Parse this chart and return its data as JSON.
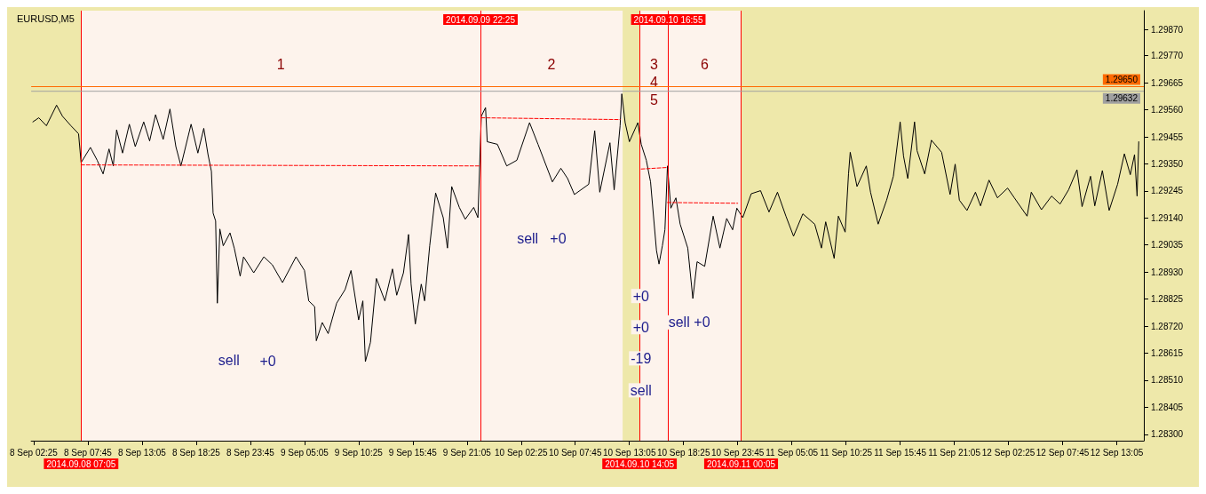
{
  "chart_data": {
    "type": "line",
    "title": "EURUSD,M5",
    "marker": "none",
    "grid": false,
    "xlim": [
      "2014-09-08T02:10",
      "2014-09-12T15:45"
    ],
    "ylim": [
      1.28275,
      1.29945
    ],
    "xticks": [
      {
        "value": "2014-09-08T02:25",
        "label": "8 Sep 02:25"
      },
      {
        "value": "2014-09-08T07:45",
        "label": "8 Sep 07:45"
      },
      {
        "value": "2014-09-08T13:05",
        "label": "8 Sep 13:05"
      },
      {
        "value": "2014-09-08T18:25",
        "label": "8 Sep 18:25"
      },
      {
        "value": "2014-09-08T23:45",
        "label": "8 Sep 23:45"
      },
      {
        "value": "2014-09-09T05:05",
        "label": "9 Sep 05:05"
      },
      {
        "value": "2014-09-09T10:25",
        "label": "9 Sep 10:25"
      },
      {
        "value": "2014-09-09T15:45",
        "label": "9 Sep 15:45"
      },
      {
        "value": "2014-09-09T21:05",
        "label": "9 Sep 21:05"
      },
      {
        "value": "2014-09-10T02:25",
        "label": "10 Sep 02:25"
      },
      {
        "value": "2014-09-10T07:45",
        "label": "10 Sep 07:45"
      },
      {
        "value": "2014-09-10T13:05",
        "label": "10 Sep 13:05"
      },
      {
        "value": "2014-09-10T18:25",
        "label": "10 Sep 18:25"
      },
      {
        "value": "2014-09-10T23:45",
        "label": "10 Sep 23:45"
      },
      {
        "value": "2014-09-11T05:05",
        "label": "11 Sep 05:05"
      },
      {
        "value": "2014-09-11T10:25",
        "label": "11 Sep 10:25"
      },
      {
        "value": "2014-09-11T15:45",
        "label": "11 Sep 15:45"
      },
      {
        "value": "2014-09-11T21:05",
        "label": "11 Sep 21:05"
      },
      {
        "value": "2014-09-12T02:25",
        "label": "12 Sep 02:25"
      },
      {
        "value": "2014-09-12T07:45",
        "label": "12 Sep 07:45"
      },
      {
        "value": "2014-09-12T13:05",
        "label": "12 Sep 13:05"
      }
    ],
    "yticks": [
      {
        "value": 1.2987,
        "label": "1.29870"
      },
      {
        "value": 1.2977,
        "label": "1.29770"
      },
      1.29665,
      {
        "value": 1.2956,
        "label": "1.29560"
      },
      1.29455,
      {
        "value": 1.2935,
        "label": "1.29350"
      },
      1.29245,
      {
        "value": 1.2914,
        "label": "1.29140"
      },
      1.29035,
      {
        "value": 1.2893,
        "label": "1.28930"
      },
      1.28825,
      {
        "value": 1.2872,
        "label": "1.28720"
      },
      1.28615,
      {
        "value": 1.2851,
        "label": "1.28510"
      },
      1.28405,
      {
        "value": 1.283,
        "label": "1.28300"
      }
    ],
    "series": [
      {
        "color": "#000000",
        "line_style": "solid",
        "x": [
          "2014-09-08T02:20",
          "2014-09-08T02:55",
          "2014-09-08T03:40",
          "2014-09-08T04:40",
          "2014-09-08T05:15",
          "2014-09-08T06:05",
          "2014-09-08T06:50",
          "2014-09-08T07:05",
          "2014-09-08T08:00",
          "2014-09-08T08:40",
          "2014-09-08T09:15",
          "2014-09-08T09:50",
          "2014-09-08T10:15",
          "2014-09-08T10:35",
          "2014-09-08T11:10",
          "2014-09-08T11:50",
          "2014-09-08T12:25",
          "2014-09-08T13:15",
          "2014-09-08T13:50",
          "2014-09-08T14:25",
          "2014-09-08T15:10",
          "2014-09-08T15:50",
          "2014-09-08T16:25",
          "2014-09-08T16:55",
          "2014-09-08T17:55",
          "2014-09-08T18:35",
          "2014-09-08T19:10",
          "2014-09-08T19:35",
          "2014-09-08T19:55",
          "2014-09-08T20:05",
          "2014-09-08T20:20",
          "2014-09-08T20:30",
          "2014-09-08T20:45",
          "2014-09-08T21:05",
          "2014-09-08T21:45",
          "2014-09-08T22:10",
          "2014-09-08T22:45",
          "2014-09-08T23:05",
          "2014-09-09T00:05",
          "2014-09-09T01:05",
          "2014-09-09T01:55",
          "2014-09-09T02:55",
          "2014-09-09T04:15",
          "2014-09-09T05:05",
          "2014-09-09T05:30",
          "2014-09-09T06:05",
          "2014-09-09T06:15",
          "2014-09-09T06:50",
          "2014-09-09T07:25",
          "2014-09-09T08:15",
          "2014-09-09T09:05",
          "2014-09-09T09:40",
          "2014-09-09T10:25",
          "2014-09-09T10:50",
          "2014-09-09T11:05",
          "2014-09-09T11:35",
          "2014-09-09T12:10",
          "2014-09-09T13:00",
          "2014-09-09T13:45",
          "2014-09-09T14:10",
          "2014-09-09T14:50",
          "2014-09-09T15:20",
          "2014-09-09T15:35",
          "2014-09-09T16:00",
          "2014-09-09T16:35",
          "2014-09-09T16:55",
          "2014-09-09T17:25",
          "2014-09-09T18:00",
          "2014-09-09T18:45",
          "2014-09-09T19:10",
          "2014-09-09T19:35",
          "2014-09-09T20:20",
          "2014-09-09T20:55",
          "2014-09-09T21:45",
          "2014-09-09T22:10",
          "2014-09-09T22:30",
          "2014-09-09T22:55",
          "2014-09-09T23:05",
          "2014-09-10T00:05",
          "2014-09-10T01:00",
          "2014-09-10T02:00",
          "2014-09-10T03:15",
          "2014-09-10T04:05",
          "2014-09-10T05:30",
          "2014-09-10T06:20",
          "2014-09-10T07:00",
          "2014-09-10T07:40",
          "2014-09-10T09:05",
          "2014-09-10T09:40",
          "2014-09-10T10:10",
          "2014-09-10T11:10",
          "2014-09-10T11:35",
          "2014-09-10T12:10",
          "2014-09-10T12:20",
          "2014-09-10T12:40",
          "2014-09-10T13:05",
          "2014-09-10T13:55",
          "2014-09-10T14:15",
          "2014-09-10T14:45",
          "2014-09-10T15:10",
          "2014-09-10T15:45",
          "2014-09-10T16:00",
          "2014-09-10T16:20",
          "2014-09-10T16:35",
          "2014-09-10T16:50",
          "2014-09-10T17:10",
          "2014-09-10T17:40",
          "2014-09-10T18:05",
          "2014-09-10T18:50",
          "2014-09-10T19:20",
          "2014-09-10T19:45",
          "2014-09-10T20:30",
          "2014-09-10T21:20",
          "2014-09-10T22:00",
          "2014-09-10T22:40",
          "2014-09-10T23:15",
          "2014-09-10T23:40",
          "2014-09-11T00:15",
          "2014-09-11T01:05",
          "2014-09-11T02:00",
          "2014-09-11T02:50",
          "2014-09-11T03:40",
          "2014-09-11T04:30",
          "2014-09-11T05:15",
          "2014-09-11T06:10",
          "2014-09-11T07:20",
          "2014-09-11T08:00",
          "2014-09-11T08:25",
          "2014-09-11T09:15",
          "2014-09-11T09:40",
          "2014-09-11T10:20",
          "2014-09-11T10:40",
          "2014-09-11T10:50",
          "2014-09-11T11:30",
          "2014-09-11T12:25",
          "2014-09-11T12:50",
          "2014-09-11T13:35",
          "2014-09-11T14:25",
          "2014-09-11T15:05",
          "2014-09-11T15:45",
          "2014-09-11T16:05",
          "2014-09-11T16:30",
          "2014-09-11T17:10",
          "2014-09-11T17:25",
          "2014-09-11T18:10",
          "2014-09-11T18:50",
          "2014-09-11T19:50",
          "2014-09-11T20:40",
          "2014-09-11T21:10",
          "2014-09-11T21:35",
          "2014-09-11T22:20",
          "2014-09-11T23:10",
          "2014-09-11T23:40",
          "2014-09-12T00:30",
          "2014-09-12T01:20",
          "2014-09-12T02:20",
          "2014-09-12T03:00",
          "2014-09-12T04:15",
          "2014-09-12T04:40",
          "2014-09-12T05:40",
          "2014-09-12T06:40",
          "2014-09-12T07:30",
          "2014-09-12T08:20",
          "2014-09-12T09:10",
          "2014-09-12T09:40",
          "2014-09-12T10:30",
          "2014-09-12T10:55",
          "2014-09-12T11:40",
          "2014-09-12T12:20",
          "2014-09-12T13:10",
          "2014-09-12T13:50",
          "2014-09-12T14:25",
          "2014-09-12T14:50",
          "2014-09-12T15:05",
          "2014-09-12T15:15"
        ],
        "values": [
          1.29513,
          1.29529,
          1.29498,
          1.29578,
          1.29535,
          1.29498,
          1.29467,
          1.29355,
          1.29414,
          1.29364,
          1.29311,
          1.29408,
          1.29342,
          1.29482,
          1.29392,
          1.29504,
          1.29417,
          1.29513,
          1.29439,
          1.29541,
          1.29445,
          1.29563,
          1.29417,
          1.29342,
          1.29504,
          1.29392,
          1.29488,
          1.29386,
          1.29321,
          1.29159,
          1.29128,
          1.28809,
          1.29097,
          1.29032,
          1.29082,
          1.29023,
          1.28914,
          1.28989,
          1.28927,
          1.28989,
          1.28958,
          1.28889,
          1.28989,
          1.28936,
          1.28818,
          1.28796,
          1.28663,
          1.28734,
          1.28691,
          1.28809,
          1.28862,
          1.28936,
          1.28744,
          1.28818,
          1.28582,
          1.28657,
          1.28905,
          1.28818,
          1.28942,
          1.2884,
          1.28927,
          1.29076,
          1.28883,
          1.28728,
          1.28883,
          1.28818,
          1.29032,
          1.29237,
          1.29141,
          1.29023,
          1.29262,
          1.29181,
          1.29135,
          1.29181,
          1.29141,
          1.29535,
          1.29569,
          1.29436,
          1.29426,
          1.29342,
          1.29364,
          1.2951,
          1.29426,
          1.2928,
          1.29333,
          1.29293,
          1.29231,
          1.29271,
          1.29479,
          1.2924,
          1.29432,
          1.29249,
          1.29498,
          1.29622,
          1.2951,
          1.29436,
          1.2951,
          1.29426,
          1.29364,
          1.2928,
          1.29014,
          1.28961,
          1.29032,
          1.29094,
          1.29342,
          1.29178,
          1.29218,
          1.29116,
          1.29023,
          1.28827,
          1.2897,
          1.28952,
          1.29147,
          1.29023,
          1.29138,
          1.29094,
          1.29178,
          1.29141,
          1.29234,
          1.29246,
          1.29163,
          1.2924,
          1.29147,
          1.29069,
          1.29156,
          1.29116,
          1.29023,
          1.29125,
          1.28983,
          1.29147,
          1.29085,
          1.29311,
          1.29395,
          1.29262,
          1.29342,
          1.2924,
          1.29116,
          1.29209,
          1.29302,
          1.29513,
          1.2938,
          1.29293,
          1.29513,
          1.29401,
          1.29311,
          1.29442,
          1.29395,
          1.29231,
          1.29349,
          1.29209,
          1.29169,
          1.2924,
          1.29187,
          1.29287,
          1.29218,
          1.29256,
          1.29218,
          1.29147,
          1.2924,
          1.29172,
          1.29225,
          1.29194,
          1.29249,
          1.29327,
          1.29184,
          1.29302,
          1.29187,
          1.29324,
          1.29169,
          1.29271,
          1.29389,
          1.29308,
          1.29386,
          1.29225,
          1.29436
        ]
      },
      {
        "color": "#ff0000",
        "line_style": "dashed",
        "x": [
          "2014-09-08T07:05",
          "2014-09-09T22:25"
        ],
        "values": [
          1.29346,
          1.29342
        ]
      },
      {
        "color": "#ff0000",
        "line_style": "dashed",
        "x": [
          "2014-09-09T22:30",
          "2014-09-10T12:10"
        ],
        "values": [
          1.29529,
          1.29522
        ]
      },
      {
        "color": "#ff0000",
        "line_style": "dashed",
        "x": [
          "2014-09-10T14:15",
          "2014-09-10T16:50"
        ],
        "values": [
          1.2933,
          1.29336
        ]
      },
      {
        "color": "#ff0000",
        "line_style": "dashed",
        "x": [
          "2014-09-10T16:50",
          "2014-09-10T23:45"
        ],
        "values": [
          1.292,
          1.29197
        ]
      }
    ],
    "ref_lines": [
      {
        "axis": "x",
        "value": "2014-09-08T07:05",
        "label": "2014.09.08 07:05",
        "color": "#ff0000"
      },
      {
        "axis": "x",
        "value": "2014-09-09T22:25",
        "label": "2014.09.09 22:25",
        "color": "#ff0000"
      },
      {
        "axis": "x",
        "value": "2014-09-10T14:05",
        "label": "2014.09.10 14:05",
        "color": "#ff0000"
      },
      {
        "axis": "x",
        "value": "2014-09-10T16:55",
        "label": "2014.09.10 16:55",
        "color": "#ff0000"
      },
      {
        "axis": "x",
        "value": "2014-09-11T00:05",
        "label": "2014.09.11 00:05",
        "color": "#ff0000"
      },
      {
        "axis": "y",
        "value": 1.2965,
        "label": "1.29650",
        "color": "#ff6a00"
      },
      {
        "axis": "y",
        "value": 1.29632,
        "label": "1.29632",
        "color": "#a0a0a0"
      }
    ],
    "bands": [
      {
        "axis": "x",
        "from": "2014-09-08T07:05",
        "to": "2014-09-09T22:25",
        "label": "1",
        "color": "#fdf3ec"
      },
      {
        "axis": "x",
        "from": "2014-09-09T22:25",
        "to": "2014-09-10T12:25",
        "label": "2",
        "color": "#fdf3ec"
      },
      {
        "axis": "x",
        "from": "2014-09-10T14:05",
        "to": "2014-09-10T16:55",
        "label": "3\n4\n5",
        "color": "#fdf3ec"
      },
      {
        "axis": "x",
        "from": "2014-09-10T16:55",
        "to": "2014-09-11T00:05",
        "label": "6",
        "color": "#fdf3ec"
      }
    ],
    "annotations": [
      "sell",
      "+0",
      "sell",
      "+0",
      "+0",
      "+0",
      "-19",
      "sell",
      "sell",
      "+0"
    ]
  }
}
